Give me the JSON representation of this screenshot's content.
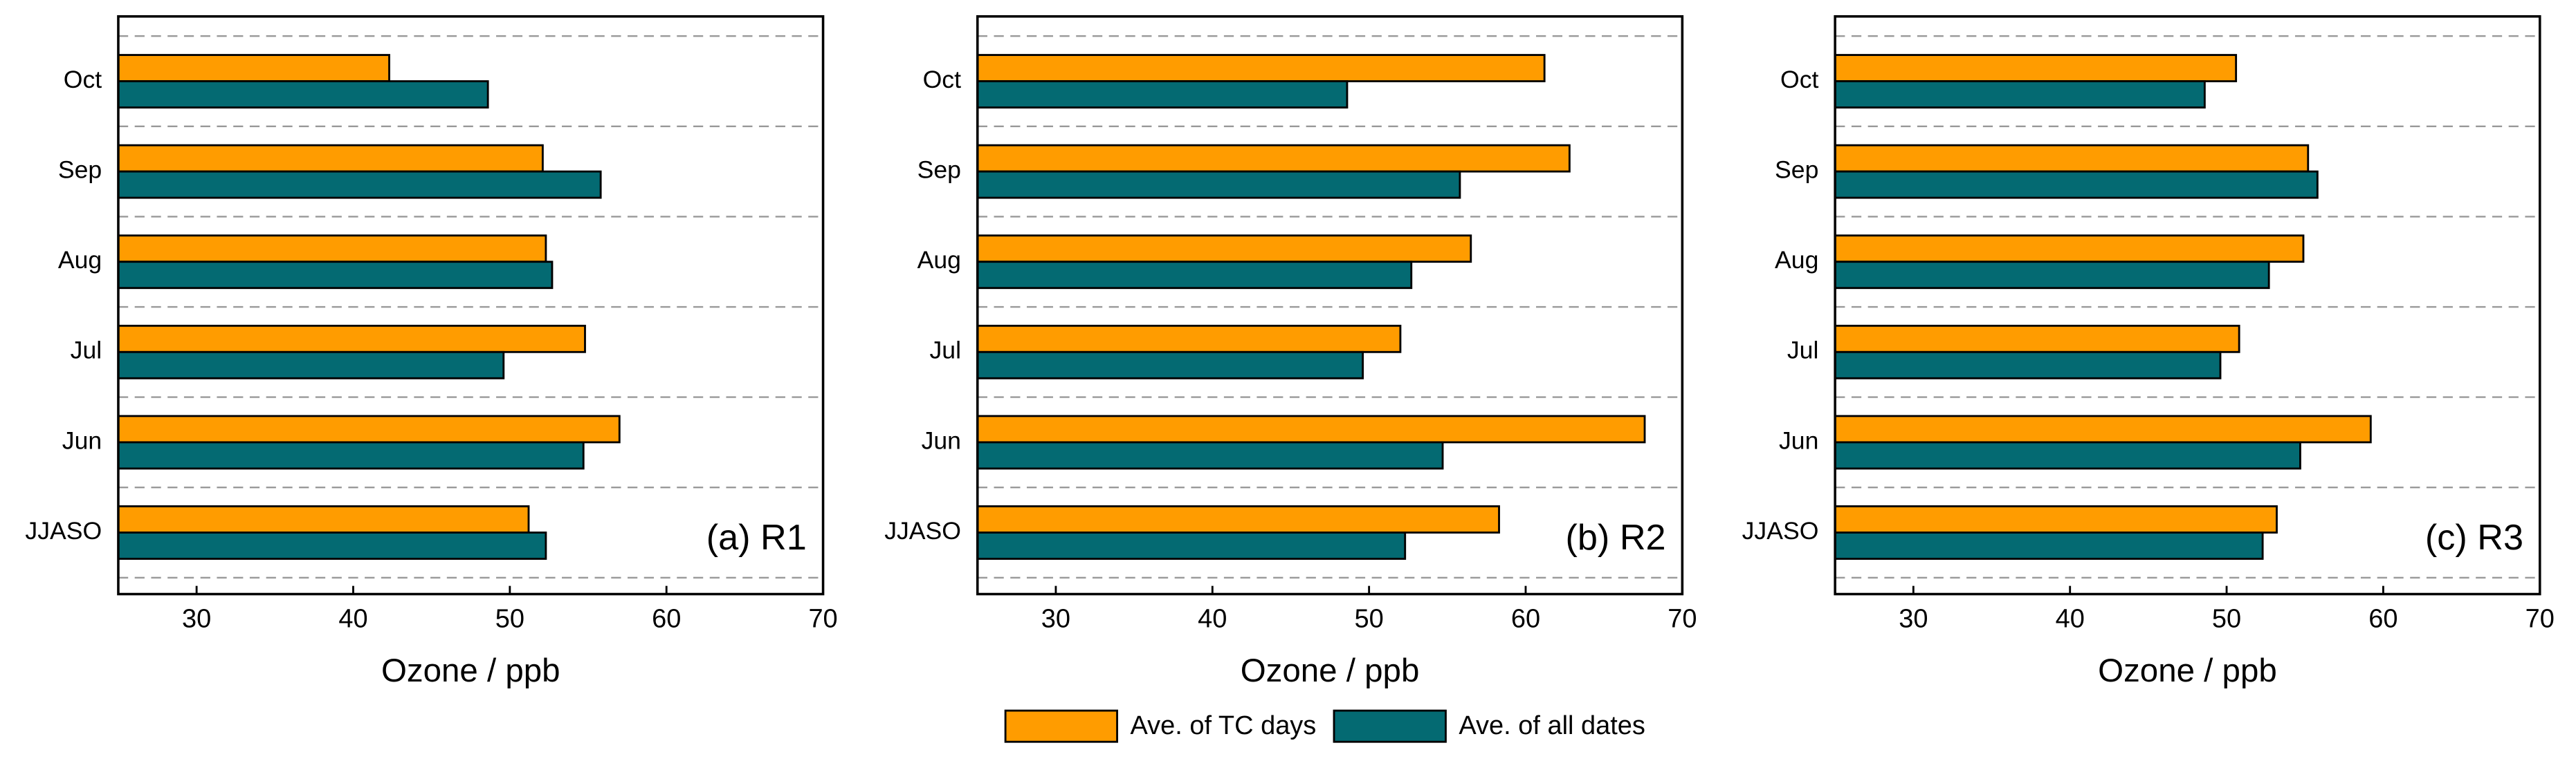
{
  "chart_data": [
    {
      "type": "bar",
      "orientation": "horizontal",
      "annotation": "(a) R1",
      "xlabel": "Ozone / ppb",
      "categories": [
        "Oct",
        "Sep",
        "Aug",
        "Jul",
        "Jun",
        "JJASO"
      ],
      "series": [
        {
          "values": [
            42.3,
            52.1,
            52.3,
            54.8,
            57.0,
            51.2
          ]
        },
        {
          "values": [
            48.6,
            55.8,
            52.7,
            49.6,
            54.7,
            52.3
          ]
        }
      ],
      "xlim": [
        25,
        70
      ],
      "xticks": [
        30,
        40,
        50,
        60,
        70
      ]
    },
    {
      "type": "bar",
      "orientation": "horizontal",
      "annotation": "(b) R2",
      "xlabel": "Ozone / ppb",
      "categories": [
        "Oct",
        "Sep",
        "Aug",
        "Jul",
        "Jun",
        "JJASO"
      ],
      "series": [
        {
          "values": [
            61.2,
            62.8,
            56.5,
            52.0,
            67.6,
            58.3
          ]
        },
        {
          "values": [
            48.6,
            55.8,
            52.7,
            49.6,
            54.7,
            52.3
          ]
        }
      ],
      "xlim": [
        25,
        70
      ],
      "xticks": [
        30,
        40,
        50,
        60,
        70
      ]
    },
    {
      "type": "bar",
      "orientation": "horizontal",
      "annotation": "(c) R3",
      "xlabel": "Ozone / ppb",
      "categories": [
        "Oct",
        "Sep",
        "Aug",
        "Jul",
        "Jun",
        "JJASO"
      ],
      "series": [
        {
          "values": [
            50.6,
            55.2,
            54.9,
            50.8,
            59.2,
            53.2
          ]
        },
        {
          "values": [
            48.6,
            55.8,
            52.7,
            49.6,
            54.7,
            52.3
          ]
        }
      ],
      "xlim": [
        25,
        70
      ],
      "xticks": [
        30,
        40,
        50,
        60,
        70
      ]
    }
  ],
  "legend": [
    {
      "name": "Ave. of TC days",
      "color": "#ff9c00"
    },
    {
      "name": "Ave. of all dates",
      "color": "#046a72"
    }
  ]
}
